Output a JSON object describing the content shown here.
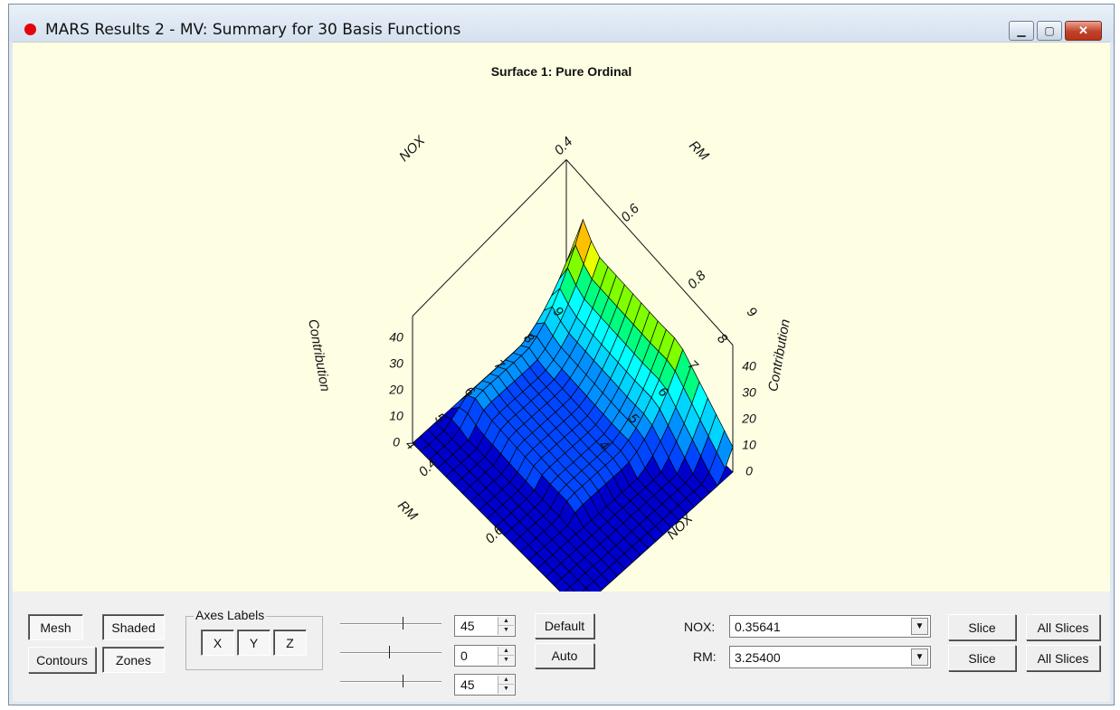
{
  "window": {
    "title": "MARS Results 2 - MV: Summary for 30 Basis Functions",
    "minimize_glyph": "▁",
    "maximize_glyph": "▢",
    "close_glyph": "✕"
  },
  "chart_title": "Surface 1: Pure Ordinal",
  "chart_data": {
    "type": "surface3d",
    "title": "Surface 1: Pure Ordinal",
    "axes": {
      "nox": {
        "label": "NOX",
        "ticks": [
          "0.4",
          "0.6",
          "0.8"
        ],
        "range": [
          0.38,
          0.88
        ]
      },
      "rm": {
        "label": "RM",
        "ticks": [
          "4",
          "5",
          "6",
          "7",
          "8",
          "9"
        ],
        "range": [
          3.6,
          8.8
        ]
      },
      "contribution": {
        "label": "Contribution",
        "ticks": [
          "0",
          "10",
          "20",
          "30",
          "40"
        ],
        "range": [
          0,
          45
        ]
      }
    },
    "grid_size": [
      20,
      20
    ],
    "colormap": [
      "#0000cd",
      "#0046ff",
      "#0090ff",
      "#00d4ff",
      "#00ffff",
      "#00ff80",
      "#80ff00",
      "#e8ff00",
      "#ffc000",
      "#ff6a00",
      "#ff3000"
    ]
  },
  "controls": {
    "mesh": "Mesh",
    "shaded": "Shaded",
    "contours": "Contours",
    "zones": "Zones",
    "axes_labels": "Axes Labels",
    "x": "X",
    "y": "Y",
    "z": "Z",
    "rotation": [
      "45",
      "0",
      "45"
    ],
    "default": "Default",
    "auto": "Auto",
    "nox_label": "NOX:",
    "nox_value": "0.35641",
    "rm_label": "RM:",
    "rm_value": "3.25400",
    "slice": "Slice",
    "all_slices": "All Slices",
    "spin_up": "▲",
    "spin_down": "▼",
    "dropdown_arrow": "▼"
  },
  "colors": {
    "plot_background": "#fefee3",
    "panel": "#f0f0f0"
  }
}
